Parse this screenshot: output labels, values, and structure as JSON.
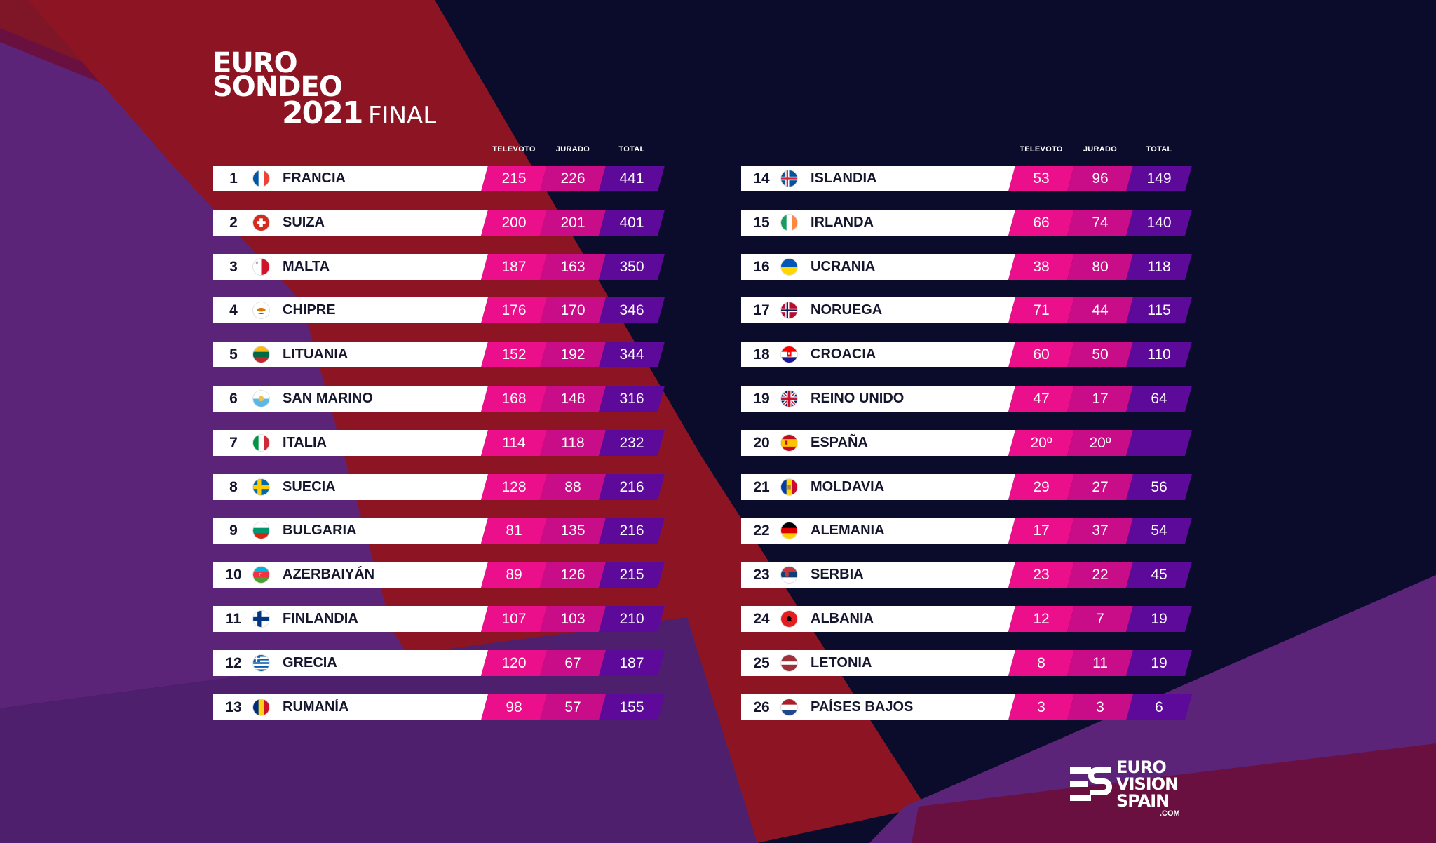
{
  "header": {
    "line1": "EURO",
    "line2": "SONDEO",
    "year": "2021",
    "stage": "FINAL"
  },
  "columns": {
    "televoto": "TELEVOTO",
    "jurado": "JURADO",
    "total": "TOTAL"
  },
  "rows": [
    {
      "rank": "1",
      "country": "FRANCIA",
      "televoto": "215",
      "jurado": "226",
      "total": "441",
      "flag": "france-flag-icon"
    },
    {
      "rank": "2",
      "country": "SUIZA",
      "televoto": "200",
      "jurado": "201",
      "total": "401",
      "flag": "switzerland-flag-icon"
    },
    {
      "rank": "3",
      "country": "MALTA",
      "televoto": "187",
      "jurado": "163",
      "total": "350",
      "flag": "malta-flag-icon"
    },
    {
      "rank": "4",
      "country": "CHIPRE",
      "televoto": "176",
      "jurado": "170",
      "total": "346",
      "flag": "cyprus-flag-icon"
    },
    {
      "rank": "5",
      "country": "LITUANIA",
      "televoto": "152",
      "jurado": "192",
      "total": "344",
      "flag": "lithuania-flag-icon"
    },
    {
      "rank": "6",
      "country": "SAN MARINO",
      "televoto": "168",
      "jurado": "148",
      "total": "316",
      "flag": "san-marino-flag-icon"
    },
    {
      "rank": "7",
      "country": "ITALIA",
      "televoto": "114",
      "jurado": "118",
      "total": "232",
      "flag": "italy-flag-icon"
    },
    {
      "rank": "8",
      "country": "SUECIA",
      "televoto": "128",
      "jurado": "88",
      "total": "216",
      "flag": "sweden-flag-icon"
    },
    {
      "rank": "9",
      "country": "BULGARIA",
      "televoto": "81",
      "jurado": "135",
      "total": "216",
      "flag": "bulgaria-flag-icon"
    },
    {
      "rank": "10",
      "country": "AZERBAIYÁN",
      "televoto": "89",
      "jurado": "126",
      "total": "215",
      "flag": "azerbaijan-flag-icon"
    },
    {
      "rank": "11",
      "country": "FINLANDIA",
      "televoto": "107",
      "jurado": "103",
      "total": "210",
      "flag": "finland-flag-icon"
    },
    {
      "rank": "12",
      "country": "GRECIA",
      "televoto": "120",
      "jurado": "67",
      "total": "187",
      "flag": "greece-flag-icon"
    },
    {
      "rank": "13",
      "country": "RUMANÍA",
      "televoto": "98",
      "jurado": "57",
      "total": "155",
      "flag": "romania-flag-icon"
    },
    {
      "rank": "14",
      "country": "ISLANDIA",
      "televoto": "53",
      "jurado": "96",
      "total": "149",
      "flag": "iceland-flag-icon"
    },
    {
      "rank": "15",
      "country": "IRLANDA",
      "televoto": "66",
      "jurado": "74",
      "total": "140",
      "flag": "ireland-flag-icon"
    },
    {
      "rank": "16",
      "country": "UCRANIA",
      "televoto": "38",
      "jurado": "80",
      "total": "118",
      "flag": "ukraine-flag-icon"
    },
    {
      "rank": "17",
      "country": "NORUEGA",
      "televoto": "71",
      "jurado": "44",
      "total": "115",
      "flag": "norway-flag-icon"
    },
    {
      "rank": "18",
      "country": "CROACIA",
      "televoto": "60",
      "jurado": "50",
      "total": "110",
      "flag": "croatia-flag-icon"
    },
    {
      "rank": "19",
      "country": "REINO UNIDO",
      "televoto": "47",
      "jurado": "17",
      "total": "64",
      "flag": "united-kingdom-flag-icon"
    },
    {
      "rank": "20",
      "country": "ESPAÑA",
      "televoto": "20º",
      "jurado": "20º",
      "total": "",
      "flag": "spain-flag-icon"
    },
    {
      "rank": "21",
      "country": "MOLDAVIA",
      "televoto": "29",
      "jurado": "27",
      "total": "56",
      "flag": "moldova-flag-icon"
    },
    {
      "rank": "22",
      "country": "ALEMANIA",
      "televoto": "17",
      "jurado": "37",
      "total": "54",
      "flag": "germany-flag-icon"
    },
    {
      "rank": "23",
      "country": "SERBIA",
      "televoto": "23",
      "jurado": "22",
      "total": "45",
      "flag": "serbia-flag-icon"
    },
    {
      "rank": "24",
      "country": "ALBANIA",
      "televoto": "12",
      "jurado": "7",
      "total": "19",
      "flag": "albania-flag-icon"
    },
    {
      "rank": "25",
      "country": "LETONIA",
      "televoto": "8",
      "jurado": "11",
      "total": "19",
      "flag": "latvia-flag-icon"
    },
    {
      "rank": "26",
      "country": "PAÍSES BAJOS",
      "televoto": "3",
      "jurado": "3",
      "total": "6",
      "flag": "netherlands-flag-icon"
    }
  ],
  "logo": {
    "line1": "EURO",
    "line2": "VISION",
    "line3": "SPAIN",
    "domain": ".COM"
  },
  "colors": {
    "background": "#0b0c2c",
    "televoto": "#ec0f8b",
    "jurado": "#c90c87",
    "total": "#5d0a9b",
    "row": "#ffffff"
  }
}
